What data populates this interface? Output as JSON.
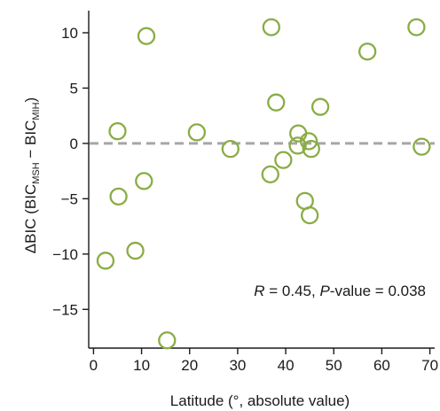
{
  "chart_data": {
    "type": "scatter",
    "title": "",
    "xlabel": "Latitude (°, absolute value)",
    "ylabel": {
      "prefix": "ΔBIC (BIC",
      "sub1": "MSH",
      "middle": " − BIC",
      "sub2": "MIH",
      "suffix": ")"
    },
    "xlim": [
      -1,
      71
    ],
    "ylim": [
      -18.5,
      12
    ],
    "xticks": [
      0,
      10,
      20,
      30,
      40,
      50,
      60,
      70
    ],
    "yticks": [
      -15,
      -10,
      -5,
      0,
      5,
      10
    ],
    "grid": false,
    "reference_line": {
      "y": 0,
      "style": "dashed",
      "color": "#a6a6a6"
    },
    "marker": {
      "shape": "open-circle",
      "color": "#8aac45"
    },
    "annotation": {
      "R_label": "R",
      "R_text": " = 0.45, ",
      "P_label": "P",
      "P_text": "-value = 0.038",
      "position": "bottom-right"
    },
    "points": [
      {
        "x": 2.5,
        "y": -10.6
      },
      {
        "x": 5.0,
        "y": 1.1
      },
      {
        "x": 5.2,
        "y": -4.8
      },
      {
        "x": 8.7,
        "y": -9.7
      },
      {
        "x": 10.5,
        "y": -3.4
      },
      {
        "x": 11.0,
        "y": 9.7
      },
      {
        "x": 15.3,
        "y": -17.8
      },
      {
        "x": 21.5,
        "y": 1.0
      },
      {
        "x": 28.5,
        "y": -0.5
      },
      {
        "x": 36.8,
        "y": -2.8
      },
      {
        "x": 37.0,
        "y": 10.5
      },
      {
        "x": 38.0,
        "y": 3.7
      },
      {
        "x": 39.5,
        "y": -1.5
      },
      {
        "x": 42.5,
        "y": -0.2
      },
      {
        "x": 42.6,
        "y": 0.9
      },
      {
        "x": 44.0,
        "y": -5.2
      },
      {
        "x": 44.8,
        "y": 0.2
      },
      {
        "x": 45.0,
        "y": -6.5
      },
      {
        "x": 45.3,
        "y": -0.5
      },
      {
        "x": 47.2,
        "y": 3.3
      },
      {
        "x": 57.0,
        "y": 8.3
      },
      {
        "x": 67.2,
        "y": 10.5
      },
      {
        "x": 68.3,
        "y": -0.3
      }
    ]
  }
}
